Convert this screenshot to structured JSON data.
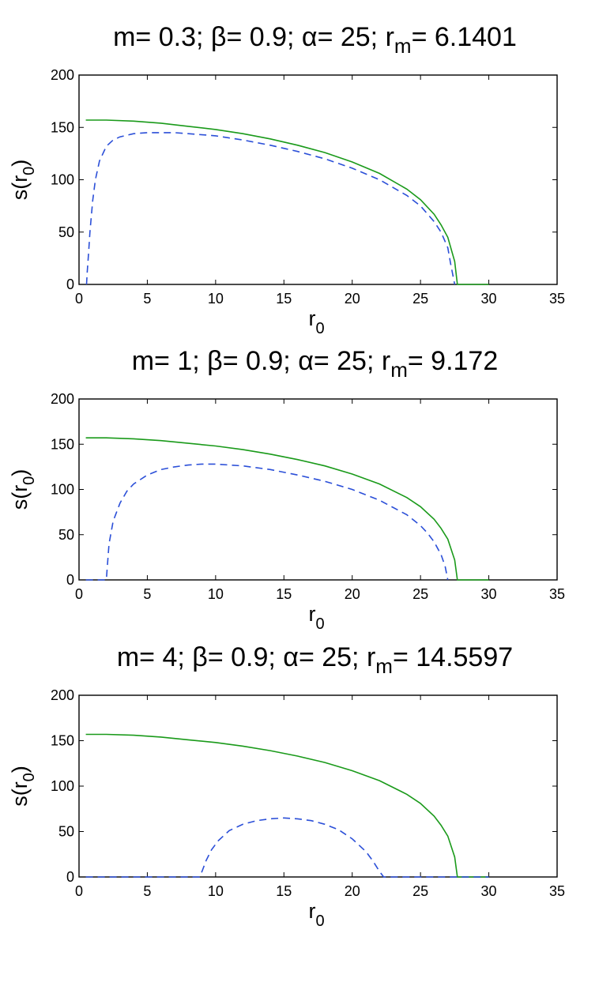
{
  "chart_data": [
    {
      "type": "line",
      "title": {
        "m": "0.3",
        "beta": "0.9",
        "alpha": "25",
        "rm": "6.1401"
      },
      "xlabel": {
        "base": "r",
        "sub": "0"
      },
      "ylabel": {
        "base": "s(r",
        "sub": "0",
        "close": ")"
      },
      "xlim": [
        0,
        35
      ],
      "ylim": [
        0,
        200
      ],
      "xticks": [
        "0",
        "5",
        "10",
        "15",
        "20",
        "25",
        "30",
        "35"
      ],
      "yticks": [
        "0",
        "50",
        "100",
        "150",
        "200"
      ],
      "series": [
        {
          "style": "solid",
          "color": "#1a9a1a",
          "x": [
            0.5,
            2,
            4,
            6,
            8,
            10,
            12,
            14,
            16,
            18,
            20,
            22,
            24,
            25,
            26,
            26.5,
            27,
            27.5,
            27.7,
            28,
            29,
            30
          ],
          "y": [
            157,
            157,
            156,
            154,
            151,
            148,
            144,
            139,
            133,
            126,
            117,
            106,
            91,
            81,
            67,
            57,
            45,
            22,
            0,
            0,
            0,
            0
          ]
        },
        {
          "style": "dashed",
          "color": "#2b4fd8",
          "x": [
            0.55,
            0.6,
            0.7,
            0.8,
            1.0,
            1.2,
            1.5,
            2,
            2.5,
            3,
            4,
            5,
            6,
            7,
            8,
            10,
            12,
            14,
            16,
            18,
            20,
            22,
            24,
            25,
            26,
            26.5,
            27,
            27.2,
            27.5
          ],
          "y": [
            0,
            12,
            30,
            50,
            80,
            100,
            118,
            132,
            138,
            141,
            144,
            145,
            145,
            145,
            144,
            142,
            138,
            133,
            127,
            120,
            111,
            100,
            85,
            75,
            60,
            50,
            35,
            20,
            0
          ]
        }
      ]
    },
    {
      "type": "line",
      "title": {
        "m": "1",
        "beta": "0.9",
        "alpha": "25",
        "rm": "9.172"
      },
      "xlabel": {
        "base": "r",
        "sub": "0"
      },
      "ylabel": {
        "base": "s(r",
        "sub": "0",
        "close": ")"
      },
      "xlim": [
        0,
        35
      ],
      "ylim": [
        0,
        200
      ],
      "xticks": [
        "0",
        "5",
        "10",
        "15",
        "20",
        "25",
        "30",
        "35"
      ],
      "yticks": [
        "0",
        "50",
        "100",
        "150",
        "200"
      ],
      "series": [
        {
          "style": "solid",
          "color": "#1a9a1a",
          "x": [
            0.5,
            2,
            4,
            6,
            8,
            10,
            12,
            14,
            16,
            18,
            20,
            22,
            24,
            25,
            26,
            26.5,
            27,
            27.5,
            27.7,
            28,
            29,
            30
          ],
          "y": [
            157,
            157,
            156,
            154,
            151,
            148,
            144,
            139,
            133,
            126,
            117,
            106,
            91,
            81,
            67,
            57,
            45,
            22,
            0,
            0,
            0,
            0
          ]
        },
        {
          "style": "dashed",
          "color": "#2b4fd8",
          "x": [
            0.5,
            1,
            1.5,
            2.0,
            2.05,
            2.2,
            2.5,
            3,
            3.5,
            4,
            5,
            6,
            7,
            8,
            9,
            10,
            12,
            14,
            16,
            18,
            20,
            22,
            24,
            25,
            25.5,
            26,
            26.5,
            26.8,
            27.0
          ],
          "y": [
            0,
            0,
            0,
            0,
            10,
            40,
            65,
            85,
            98,
            106,
            116,
            122,
            125,
            127,
            128,
            128,
            126,
            122,
            116,
            109,
            100,
            88,
            72,
            60,
            52,
            42,
            28,
            15,
            0
          ]
        }
      ]
    },
    {
      "type": "line",
      "title": {
        "m": "4",
        "beta": "0.9",
        "alpha": "25",
        "rm": "14.5597"
      },
      "xlabel": {
        "base": "r",
        "sub": "0"
      },
      "ylabel": {
        "base": "s(r",
        "sub": "0",
        "close": ")"
      },
      "xlim": [
        0,
        35
      ],
      "ylim": [
        0,
        200
      ],
      "xticks": [
        "0",
        "5",
        "10",
        "15",
        "20",
        "25",
        "30",
        "35"
      ],
      "yticks": [
        "0",
        "50",
        "100",
        "150",
        "200"
      ],
      "series": [
        {
          "style": "solid",
          "color": "#1a9a1a",
          "x": [
            0.5,
            2,
            4,
            6,
            8,
            10,
            12,
            14,
            16,
            18,
            20,
            22,
            24,
            25,
            26,
            26.5,
            27,
            27.5,
            27.7,
            28,
            29,
            30
          ],
          "y": [
            157,
            157,
            156,
            154,
            151,
            148,
            144,
            139,
            133,
            126,
            117,
            106,
            91,
            81,
            67,
            57,
            45,
            22,
            0,
            0,
            0,
            0
          ]
        },
        {
          "style": "dashed",
          "color": "#2b4fd8",
          "x": [
            0.5,
            3,
            5,
            8,
            8.8,
            9.0,
            9.3,
            9.7,
            10.2,
            11,
            12,
            13,
            14,
            15,
            16,
            17,
            18,
            19,
            20,
            21,
            21.5,
            22,
            22.3,
            23,
            25,
            27,
            29,
            30
          ],
          "y": [
            0,
            0,
            0,
            0,
            0,
            6,
            18,
            30,
            40,
            51,
            58,
            62,
            64,
            65,
            64,
            62,
            58,
            52,
            42,
            28,
            18,
            6,
            0,
            0,
            0,
            0,
            0,
            0
          ]
        }
      ]
    }
  ]
}
